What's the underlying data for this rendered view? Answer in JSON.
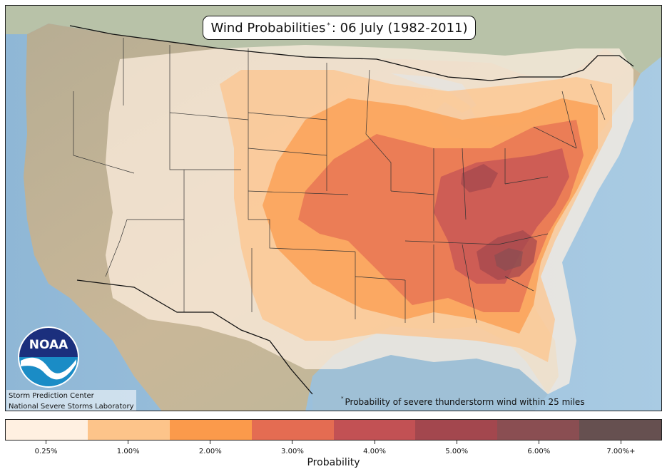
{
  "title": {
    "main": "Wind Probabilities",
    "marker": "*",
    "rest": ": 06 July (1982-2011)"
  },
  "credits": {
    "line1": "Storm Prediction Center",
    "line2": "National Severe Storms Laboratory"
  },
  "logo": {
    "text": "NOAA",
    "icon": "noaa-logo-icon"
  },
  "footnote": {
    "marker": "*",
    "text": "Probability of severe thunderstorm wind within 25 miles"
  },
  "legend": {
    "title": "Probability",
    "items": [
      {
        "label": "0.25%",
        "color": "#fff0e1"
      },
      {
        "label": "1.00%",
        "color": "#fdc48a"
      },
      {
        "label": "2.00%",
        "color": "#fb9a4b"
      },
      {
        "label": "3.00%",
        "color": "#e46c52"
      },
      {
        "label": "4.00%",
        "color": "#c25154"
      },
      {
        "label": "5.00%",
        "color": "#a3474e"
      },
      {
        "label": "6.00%",
        "color": "#8a4e52"
      },
      {
        "label": "7.00%+",
        "color": "#665050"
      }
    ]
  },
  "colors": {
    "ocean": "#9fc3dd",
    "land": "#c6b49a",
    "canada": "#cfd8c6",
    "mexico": "#c2b28c"
  }
}
